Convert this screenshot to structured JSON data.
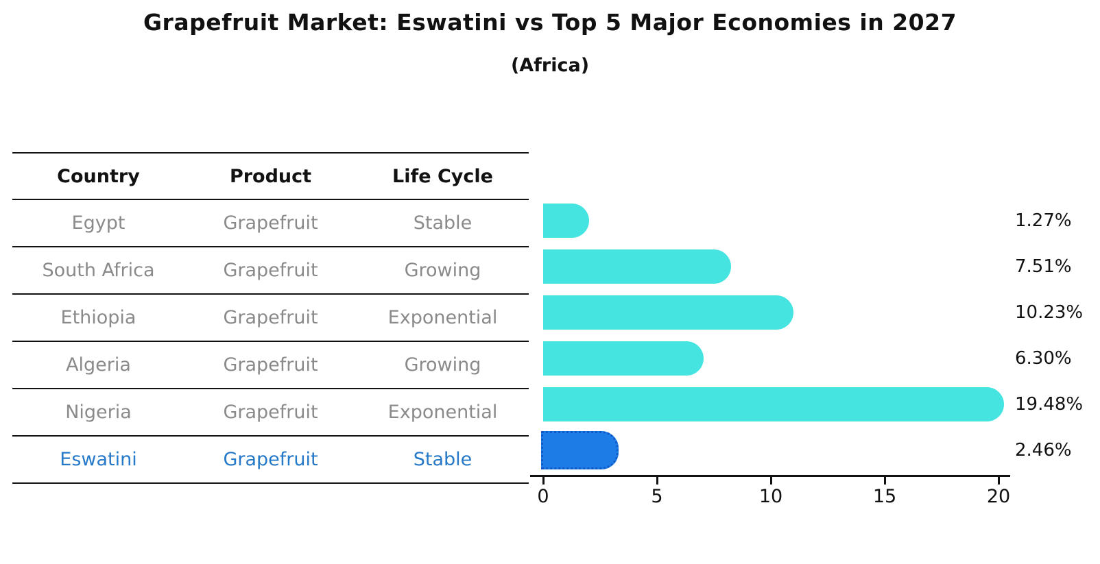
{
  "chart_data": {
    "type": "bar",
    "orientation": "horizontal",
    "title": "Grapefruit Market: Eswatini vs Top 5 Major Economies in 2027",
    "subtitle": "(Africa)",
    "categories": [
      "Egypt",
      "South Africa",
      "Ethiopia",
      "Algeria",
      "Nigeria",
      "Eswatini"
    ],
    "values": [
      1.27,
      7.51,
      10.23,
      6.3,
      19.48,
      2.46
    ],
    "value_labels": [
      "1.27%",
      "7.51%",
      "10.23%",
      "6.30%",
      "19.48%",
      "2.46%"
    ],
    "highlight_index": 5,
    "xlim": [
      0,
      20
    ],
    "xticks": [
      "0",
      "5",
      "10",
      "15",
      "20"
    ],
    "grid": "off",
    "legend": "none",
    "colors": {
      "bar_default": "#45e4e0",
      "bar_highlight": "#1e7ce6",
      "bar_highlight_border": "#1159c9",
      "row_text": "#8a8a8a",
      "highlight_text": "#2679c8",
      "axis_text": "#111111"
    }
  },
  "table": {
    "headers": [
      "Country",
      "Product",
      "Life Cycle"
    ],
    "rows": [
      {
        "country": "Egypt",
        "product": "Grapefruit",
        "life_cycle": "Stable",
        "highlight": false
      },
      {
        "country": "South Africa",
        "product": "Grapefruit",
        "life_cycle": "Growing",
        "highlight": false
      },
      {
        "country": "Ethiopia",
        "product": "Grapefruit",
        "life_cycle": "Exponential",
        "highlight": false
      },
      {
        "country": "Algeria",
        "product": "Grapefruit",
        "life_cycle": "Growing",
        "highlight": false
      },
      {
        "country": "Nigeria",
        "product": "Grapefruit",
        "life_cycle": "Exponential",
        "highlight": false
      },
      {
        "country": "Eswatini",
        "product": "Grapefruit",
        "life_cycle": "Stable",
        "highlight": true
      }
    ]
  }
}
